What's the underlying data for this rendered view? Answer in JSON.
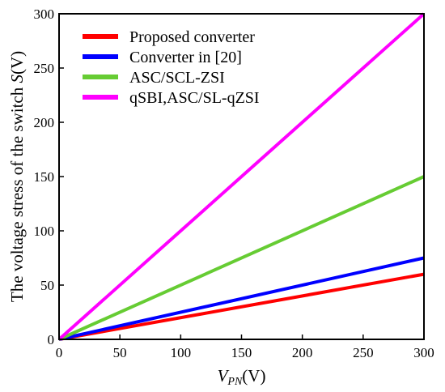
{
  "chart_data": {
    "type": "line",
    "x": [
      0,
      300
    ],
    "series": [
      {
        "name": "Proposed converter",
        "color": "#ff0000",
        "values": [
          0,
          60
        ]
      },
      {
        "name": "Converter in [20]",
        "color": "#0000ff",
        "values": [
          0,
          75
        ]
      },
      {
        "name": "ASC/SCL-ZSI",
        "color": "#66cc33",
        "values": [
          0,
          150
        ]
      },
      {
        "name": "qSBI,ASC/SL-qZSI",
        "color": "#ff00ff",
        "values": [
          0,
          300
        ]
      }
    ],
    "xlabel": {
      "main": "V",
      "sub": "PN",
      "unit": "(V)"
    },
    "ylabel": {
      "text": "The voltage stress of the switch ",
      "var": "S",
      "unit": "(V)"
    },
    "xlim": [
      0,
      300
    ],
    "ylim": [
      0,
      300
    ],
    "xticks": [
      0,
      50,
      100,
      150,
      200,
      250,
      300
    ],
    "yticks": [
      0,
      50,
      100,
      150,
      200,
      250,
      300
    ],
    "grid": false,
    "legend_position": "top-left"
  }
}
